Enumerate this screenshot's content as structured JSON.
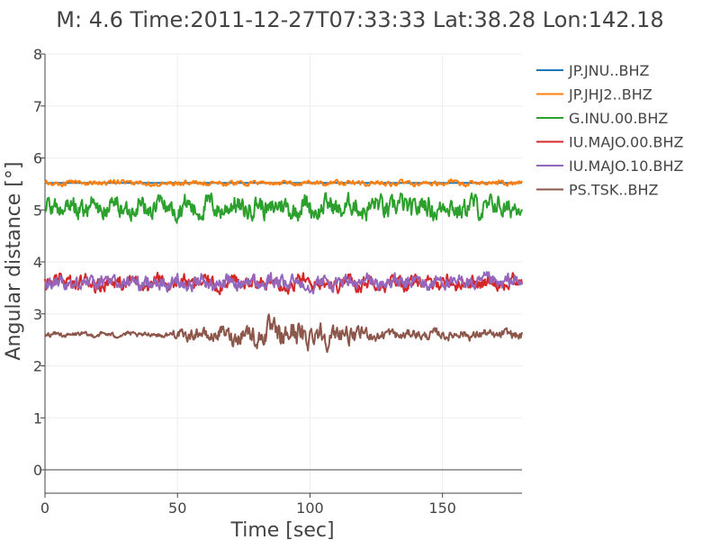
{
  "chart_data": {
    "type": "line",
    "title": "M: 4.6 Time:2011-12-27T07:33:33 Lat:38.28 Lon:142.18",
    "xlabel": "Time [sec]",
    "ylabel": "Angular distance [°]",
    "xlim": [
      0,
      180
    ],
    "ylim": [
      -0.45,
      8
    ],
    "xticks": [
      0,
      50,
      100,
      150
    ],
    "xtick_labels": [
      "0",
      "50",
      "100",
      "150"
    ],
    "yticks": [
      0,
      1,
      2,
      3,
      4,
      5,
      6,
      7,
      8
    ],
    "ytick_labels": [
      "0",
      "1",
      "2",
      "3",
      "4",
      "5",
      "6",
      "7",
      "8"
    ],
    "grid": true,
    "legend_position": "top-right",
    "series": [
      {
        "name": "JP.JNU..BHZ",
        "color": "#1f77b4",
        "baseline": 5.52,
        "amplitude": 0.0,
        "detail": "flat"
      },
      {
        "name": "JP.JHJ2..BHZ",
        "color": "#ff7f0e",
        "baseline": 5.52,
        "amplitude": 0.05,
        "detail": "low-amplitude noise"
      },
      {
        "name": "G.INU.00.BHZ",
        "color": "#2ca02c",
        "baseline": 5.05,
        "amplitude": 0.22,
        "detail": "moderate oscillation, range approx 4.65 to 5.45"
      },
      {
        "name": "IU.MAJO.00.BHZ",
        "color": "#d62728",
        "baseline": 3.6,
        "amplitude": 0.15,
        "detail": "oscillation, range approx 3.3 to 3.9"
      },
      {
        "name": "IU.MAJO.10.BHZ",
        "color": "#9467bd",
        "baseline": 3.6,
        "amplitude": 0.15,
        "detail": "oscillation, range approx 3.3 to 3.9"
      },
      {
        "name": "PS.TSK..BHZ",
        "color": "#8c564b",
        "baseline": 2.6,
        "amplitude": 0.2,
        "detail": "noise growing after t=50, peak amplitude near t=90 (range approx 1.6 to 3.6)"
      }
    ]
  }
}
